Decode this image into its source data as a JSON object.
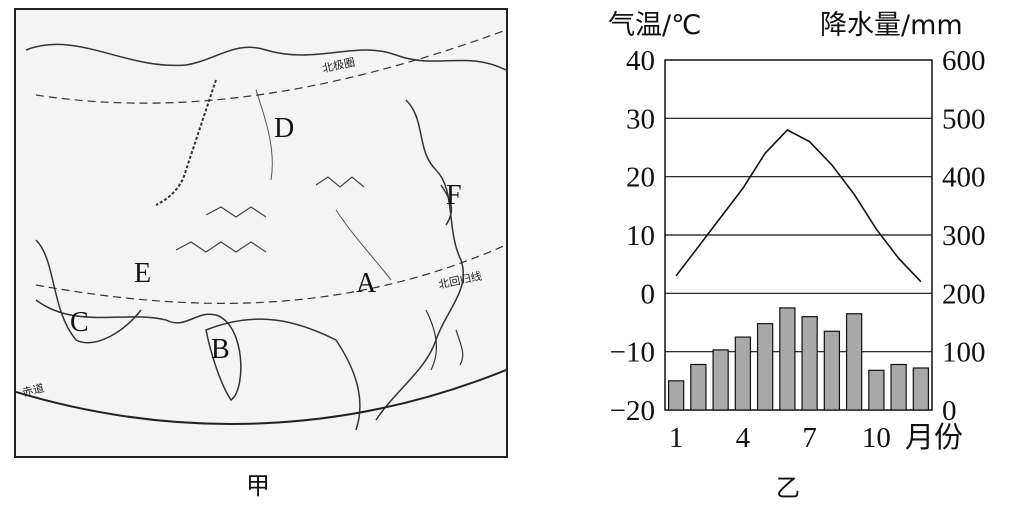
{
  "map": {
    "caption": "甲",
    "labels": {
      "a": "A",
      "b": "B",
      "c": "C",
      "d": "D",
      "e": "E",
      "f": "F"
    },
    "line_labels": {
      "arctic_circle": "北极圈",
      "tropic_of_cancer": "北回归线",
      "equator": "赤道"
    }
  },
  "chart": {
    "caption": "乙",
    "left_axis_title": "气温/℃",
    "right_axis_title": "降水量/mm",
    "x_unit": "月份"
  },
  "chart_data": {
    "type": "bar",
    "x": [
      1,
      2,
      3,
      4,
      5,
      6,
      7,
      8,
      9,
      10,
      11,
      12
    ],
    "x_tick_labels": [
      "1",
      "4",
      "7",
      "10"
    ],
    "left_ticks": [
      "40",
      "30",
      "20",
      "10",
      "0",
      "−10",
      "−20"
    ],
    "right_ticks": [
      "600",
      "500",
      "400",
      "300",
      "200",
      "100",
      "0"
    ],
    "left_range": [
      -20,
      40
    ],
    "right_range": [
      0,
      600
    ],
    "series": [
      {
        "type": "bar",
        "axis": "right",
        "values": [
          50,
          78,
          103,
          125,
          148,
          175,
          160,
          135,
          165,
          68,
          78,
          72
        ]
      },
      {
        "type": "line",
        "axis": "left",
        "values": [
          3,
          8,
          13,
          18,
          24,
          28,
          26,
          22,
          17,
          11,
          6,
          2
        ]
      }
    ],
    "grid": "horizontal"
  },
  "colors": {
    "bar_fill": "#a9a9a9",
    "line": "#111111",
    "map_bg": "#f4f4f4"
  }
}
